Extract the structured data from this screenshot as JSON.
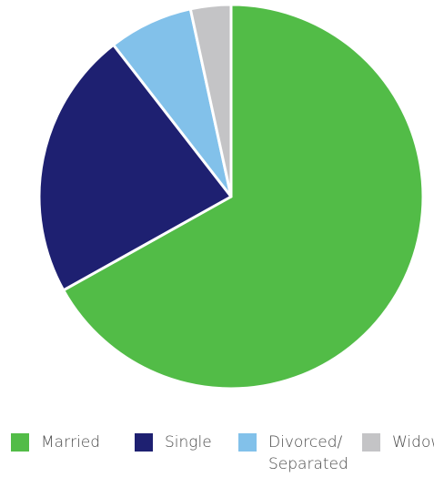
{
  "chart_data": {
    "type": "pie",
    "title": "",
    "categories": [
      "Married",
      "Single",
      "Divorced/\nSeparated",
      "Widowed"
    ],
    "values": [
      66.9,
      22.6,
      7.1,
      3.4
    ],
    "colors": [
      "#52bc47",
      "#1e2071",
      "#82c1ea",
      "#c4c4c6"
    ],
    "start_angle": "12 o'clock",
    "direction": "clockwise",
    "legend": {
      "placement": "bottom",
      "items": [
        {
          "label": "Married",
          "color": "#52bc47"
        },
        {
          "label": "Single",
          "color": "#1e2071"
        },
        {
          "label": "Divorced/\nSeparated",
          "color": "#82c1ea"
        },
        {
          "label": "Widowed",
          "color": "#c4c4c6"
        }
      ]
    }
  }
}
